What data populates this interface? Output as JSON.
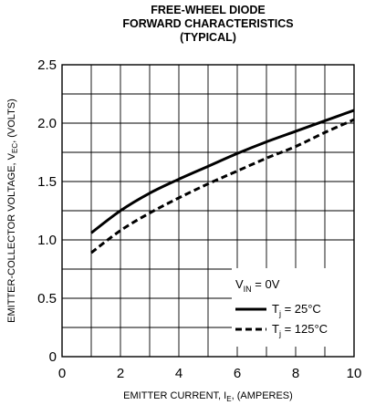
{
  "chart_data": {
    "type": "line",
    "title_lines": [
      "FREE-WHEEL DIODE",
      "FORWARD CHARACTERISTICS",
      "(TYPICAL)"
    ],
    "xlabel": {
      "main": "EMITTER CURRENT, I",
      "sub": "E",
      "tail": ", (AMPERES)"
    },
    "ylabel": {
      "main": "EMITTER-COLLECTOR VOLTAGE, V",
      "sub": "EC",
      "tail": ", (VOLTS)"
    },
    "xlim": [
      0,
      10
    ],
    "ylim": [
      0,
      2.5
    ],
    "x_ticks": [
      "0",
      "2",
      "4",
      "6",
      "8",
      "10"
    ],
    "y_ticks": [
      "0",
      "0.5",
      "1.0",
      "1.5",
      "2.0",
      "2.5"
    ],
    "grid": true,
    "legend": {
      "header": {
        "main": "V",
        "sub": "IN",
        "tail": " = 0V"
      },
      "placement": "bottom-right",
      "entries": [
        {
          "main": "T",
          "sub": "j",
          "tail": " = 25°C",
          "style": "solid"
        },
        {
          "main": "T",
          "sub": "j",
          "tail": " = 125°C",
          "style": "dashed"
        }
      ]
    },
    "series": [
      {
        "style": "solid",
        "color": "#000000",
        "points": [
          [
            1,
            1.06
          ],
          [
            2,
            1.25
          ],
          [
            3,
            1.4
          ],
          [
            4,
            1.52
          ],
          [
            5,
            1.63
          ],
          [
            6,
            1.74
          ],
          [
            7,
            1.84
          ],
          [
            8,
            1.93
          ],
          [
            9,
            2.02
          ],
          [
            10,
            2.11
          ]
        ]
      },
      {
        "style": "dashed",
        "color": "#000000",
        "points": [
          [
            1,
            0.89
          ],
          [
            2,
            1.08
          ],
          [
            3,
            1.23
          ],
          [
            4,
            1.36
          ],
          [
            5,
            1.48
          ],
          [
            6,
            1.59
          ],
          [
            7,
            1.7
          ],
          [
            8,
            1.8
          ],
          [
            9,
            1.92
          ],
          [
            10,
            2.03
          ]
        ]
      }
    ]
  }
}
